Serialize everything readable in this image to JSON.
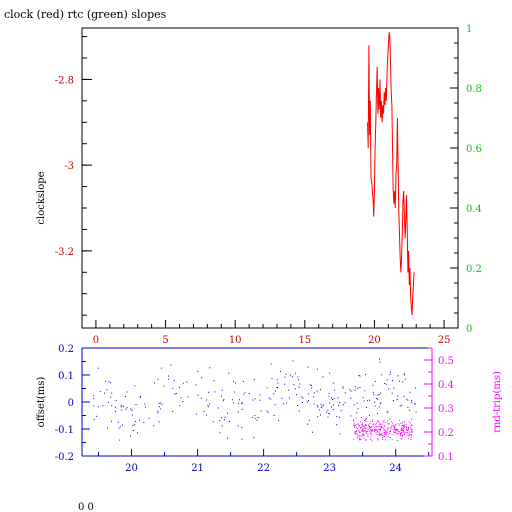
{
  "title": "clock (red) rtc (green) slopes",
  "footer": "0 0",
  "colors": {
    "clock": "#ff0000",
    "rtc": "#00cc00",
    "offset": "#0000cc",
    "rndtrip": "#ff00ff",
    "frame": "#000000"
  },
  "chart_data": [
    {
      "type": "line",
      "title": "clock (red) rtc (green) slopes",
      "ylabel": "clockslope",
      "xlim": [
        -1,
        26
      ],
      "ylim": [
        -3.38,
        -2.68
      ],
      "x_ticks": [
        0,
        5,
        10,
        15,
        20,
        25
      ],
      "x_tick_labels": [
        "0",
        "5",
        "10",
        "15",
        "20",
        "25"
      ],
      "y_ticks": [
        -2.8,
        -3,
        -3.2
      ],
      "y_tick_labels": [
        "-2.8",
        "-3",
        "-3.2"
      ],
      "y2lim": [
        0,
        1
      ],
      "y2_ticks": [
        0,
        0.2,
        0.4,
        0.6,
        0.8,
        1
      ],
      "y2_tick_labels": [
        "0",
        "0.2",
        "0.4",
        "0.6",
        "0.8",
        "1"
      ],
      "series": [
        {
          "color": "#ff0000",
          "points": [
            [
              19.5,
              -2.9
            ],
            [
              19.55,
              -2.96
            ],
            [
              19.6,
              -2.72
            ],
            [
              19.65,
              -2.93
            ],
            [
              19.7,
              -2.85
            ],
            [
              19.75,
              -3.03
            ],
            [
              19.8,
              -3.04
            ],
            [
              19.85,
              -3.06
            ],
            [
              19.9,
              -3.08
            ],
            [
              19.95,
              -3.12
            ],
            [
              20.0,
              -3.06
            ],
            [
              20.05,
              -2.96
            ],
            [
              20.1,
              -2.9
            ],
            [
              20.15,
              -2.83
            ],
            [
              20.2,
              -2.77
            ],
            [
              20.25,
              -2.88
            ],
            [
              20.3,
              -2.82
            ],
            [
              20.35,
              -2.87
            ],
            [
              20.4,
              -2.8
            ],
            [
              20.45,
              -2.89
            ],
            [
              20.5,
              -2.85
            ],
            [
              20.55,
              -2.9
            ],
            [
              20.6,
              -2.86
            ],
            [
              20.65,
              -2.88
            ],
            [
              20.7,
              -2.83
            ],
            [
              20.75,
              -2.86
            ],
            [
              20.8,
              -2.82
            ],
            [
              20.85,
              -2.85
            ],
            [
              20.9,
              -2.79
            ],
            [
              20.95,
              -2.75
            ],
            [
              21.0,
              -2.72
            ],
            [
              21.05,
              -2.69
            ],
            [
              21.1,
              -2.7
            ],
            [
              21.15,
              -2.76
            ],
            [
              21.2,
              -2.83
            ],
            [
              21.25,
              -2.86
            ],
            [
              21.3,
              -2.96
            ],
            [
              21.35,
              -3.06
            ],
            [
              21.4,
              -3.09
            ],
            [
              21.45,
              -3.06
            ],
            [
              21.5,
              -3.1
            ],
            [
              21.55,
              -3.02
            ],
            [
              21.6,
              -3.0
            ],
            [
              21.65,
              -2.89
            ],
            [
              21.7,
              -3.0
            ],
            [
              21.75,
              -3.11
            ],
            [
              21.8,
              -3.16
            ],
            [
              21.85,
              -3.22
            ],
            [
              21.9,
              -3.25
            ],
            [
              21.95,
              -3.21
            ],
            [
              22.0,
              -3.16
            ],
            [
              22.05,
              -3.08
            ],
            [
              22.1,
              -3.06
            ],
            [
              22.15,
              -3.12
            ],
            [
              22.2,
              -3.17
            ],
            [
              22.25,
              -3.13
            ],
            [
              22.3,
              -3.07
            ],
            [
              22.35,
              -3.15
            ],
            [
              22.4,
              -3.25
            ],
            [
              22.45,
              -3.2
            ],
            [
              22.5,
              -3.28
            ],
            [
              22.55,
              -3.24
            ],
            [
              22.6,
              -3.31
            ],
            [
              22.65,
              -3.33
            ],
            [
              22.7,
              -3.35
            ],
            [
              22.75,
              -3.31
            ],
            [
              22.8,
              -3.28
            ],
            [
              22.85,
              -3.25
            ]
          ]
        }
      ]
    },
    {
      "type": "scatter",
      "xlim": [
        19.25,
        24.55
      ],
      "ylim": [
        -0.2,
        0.2
      ],
      "x_ticks": [
        20,
        21,
        22,
        23,
        24
      ],
      "x_tick_labels": [
        "20",
        "21",
        "22",
        "23",
        "24"
      ],
      "y_ticks": [
        0.2,
        0.1,
        0,
        -0.1,
        -0.2
      ],
      "y_tick_labels": [
        "0.2",
        "0.1",
        "0",
        "-0.1",
        "-0.2"
      ],
      "ylabel": "offset(ms)",
      "y2lim": [
        0.1,
        0.55
      ],
      "y2_ticks": [
        0.5,
        0.4,
        0.3,
        0.2,
        0.1
      ],
      "y2_tick_labels": [
        "0.5",
        "0.4",
        "0.3",
        "0.2",
        "0.1"
      ],
      "y2label": "rnd-trip(ms)",
      "series": [
        {
          "axis": "left",
          "color": "#0000cc",
          "point_count": 320,
          "x_range": [
            19.42,
            24.32
          ],
          "mean": 0.01,
          "spread": 0.05
        },
        {
          "axis": "right",
          "color": "#ff00ff",
          "point_count": 320,
          "x_range": [
            23.35,
            24.25
          ],
          "mean": 0.21,
          "spread": 0.02
        }
      ]
    }
  ]
}
